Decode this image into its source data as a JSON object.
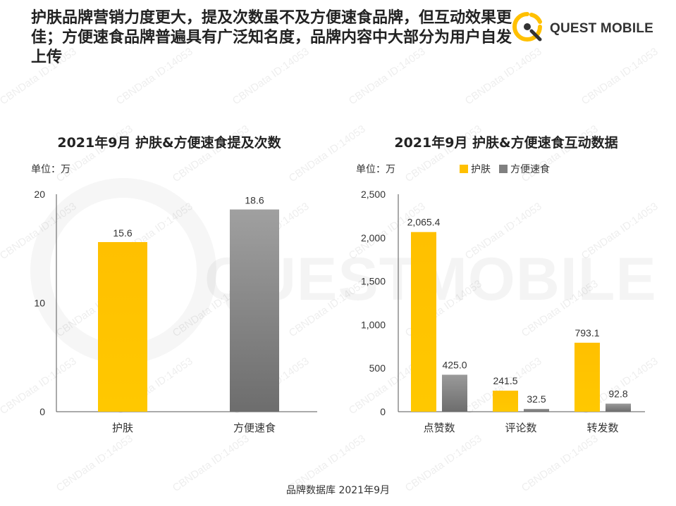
{
  "headline": "护肤品牌营销力度更大，提及次数虽不及方便速食品牌，但互动效果更佳；方便速食品牌普遍具有广泛知名度，品牌内容中大部分为用户自发上传",
  "logo": {
    "text": "QUEST MOBILE"
  },
  "watermark": {
    "text": "CBNData ID:14053",
    "big": "QUESTMOBILE"
  },
  "colors": {
    "skincare": "#FFC000",
    "instant_food": "#808080"
  },
  "source": "品牌数据库 2021年9月",
  "chart_data": [
    {
      "type": "bar",
      "title": "2021年9月 护肤&方便速食提及次数",
      "unit": "单位：万",
      "categories": [
        "护肤",
        "方便速食"
      ],
      "values": [
        15.6,
        18.6
      ],
      "value_labels": [
        "15.6",
        "18.6"
      ],
      "ylim": [
        0,
        20
      ],
      "yticks": [
        "0",
        "10",
        "20"
      ],
      "grid": false
    },
    {
      "type": "bar",
      "title": "2021年9月 护肤&方便速食互动数据",
      "unit": "单位：万",
      "categories": [
        "点赞数",
        "评论数",
        "转发数"
      ],
      "series": [
        {
          "name": "护肤",
          "values": [
            2065.4,
            241.5,
            793.1
          ],
          "labels": [
            "2,065.4",
            "241.5",
            "793.1"
          ]
        },
        {
          "name": "方便速食",
          "values": [
            425.0,
            32.5,
            92.8
          ],
          "labels": [
            "425.0",
            "32.5",
            "92.8"
          ]
        }
      ],
      "ylim": [
        0,
        2500
      ],
      "yticks": [
        "0",
        "500",
        "1,000",
        "1,500",
        "2,000",
        "2,500"
      ],
      "legend_position": "top",
      "grid": false
    }
  ]
}
